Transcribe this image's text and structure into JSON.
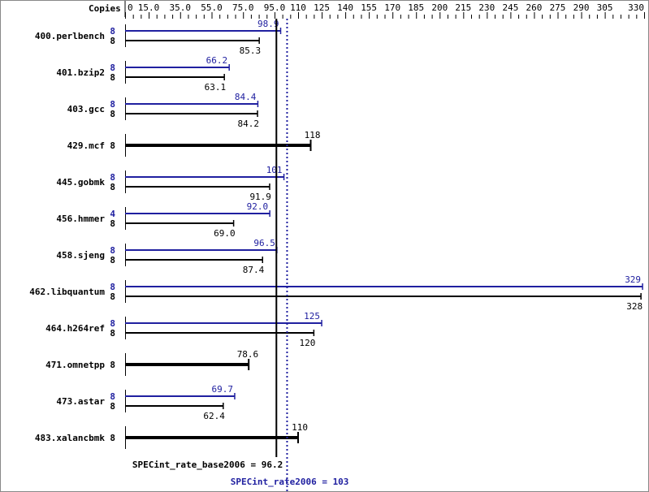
{
  "chart_data": {
    "type": "bar",
    "orientation": "horizontal",
    "axis_title": "Copies",
    "xlim": [
      0,
      330
    ],
    "tick_labels": [
      "0",
      "15.0",
      "35.0",
      "55.0",
      "75.0",
      "95.0",
      "110",
      "125",
      "140",
      "155",
      "170",
      "185",
      "200",
      "215",
      "230",
      "245",
      "260",
      "275",
      "290",
      "305",
      "330"
    ],
    "tick_values": [
      0,
      15,
      35,
      55,
      75,
      95,
      110,
      125,
      140,
      155,
      170,
      185,
      200,
      215,
      230,
      245,
      260,
      275,
      290,
      305,
      330
    ],
    "colors": {
      "peak": "#2020a0",
      "base": "#000000"
    },
    "categories": [
      "400.perlbench",
      "401.bzip2",
      "403.gcc",
      "429.mcf",
      "445.gobmk",
      "456.hmmer",
      "458.sjeng",
      "462.libquantum",
      "464.h264ref",
      "471.omnetpp",
      "473.astar",
      "483.xalancbmk"
    ],
    "series": [
      {
        "key": "peak",
        "copies": [
          "8",
          "8",
          "8",
          null,
          "8",
          "4",
          "8",
          "8",
          "8",
          null,
          "8",
          null
        ],
        "values": [
          98.9,
          66.2,
          84.4,
          null,
          101,
          92.0,
          96.5,
          329,
          125,
          null,
          69.7,
          null
        ],
        "labels": [
          "98.9",
          "66.2",
          "84.4",
          null,
          "101",
          "92.0",
          "96.5",
          "329",
          "125",
          null,
          "69.7",
          null
        ]
      },
      {
        "key": "base",
        "copies": [
          "8",
          "8",
          "8",
          "8",
          "8",
          "8",
          "8",
          "8",
          "8",
          "8",
          "8",
          "8"
        ],
        "values": [
          85.3,
          63.1,
          84.2,
          118,
          91.9,
          69.0,
          87.4,
          328,
          120,
          78.6,
          62.4,
          110
        ],
        "labels": [
          "85.3",
          "63.1",
          "84.2",
          "118",
          "91.9",
          "69.0",
          "87.4",
          "328",
          "120",
          "78.6",
          "62.4",
          "110"
        ]
      }
    ],
    "reference_lines": [
      {
        "key": "base",
        "label": "SPECint_rate_base2006 = 96.2",
        "value": 96.2
      },
      {
        "key": "peak",
        "label": "SPECint_rate2006 = 103",
        "value": 103
      }
    ]
  }
}
